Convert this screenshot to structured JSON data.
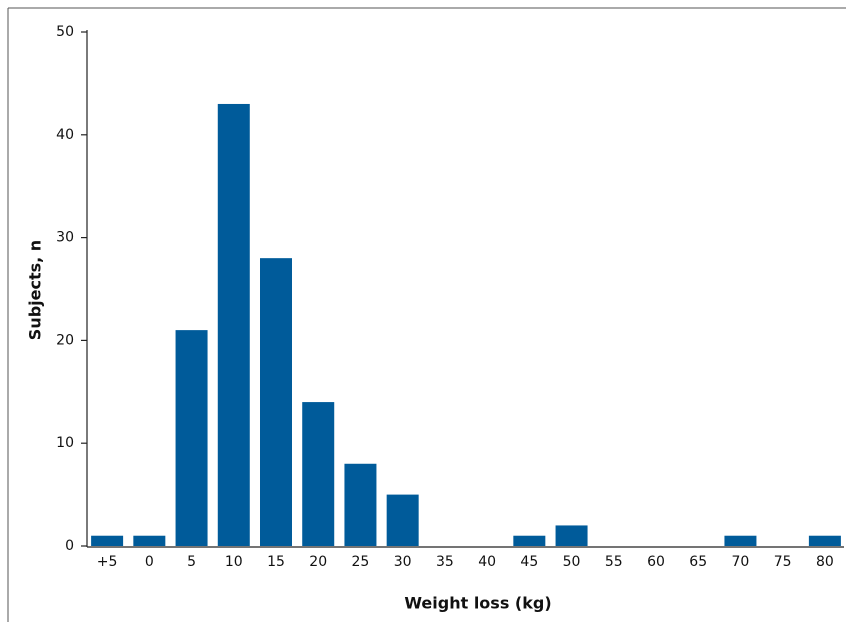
{
  "chart_data": {
    "type": "bar",
    "x_label": "Weight loss (kg)",
    "y_label": "Subjects, n",
    "categories": [
      "+5",
      "0",
      "5",
      "10",
      "15",
      "20",
      "25",
      "30",
      "35",
      "40",
      "45",
      "50",
      "55",
      "60",
      "65",
      "70",
      "75",
      "80"
    ],
    "values": [
      1,
      1,
      21,
      43,
      28,
      14,
      8,
      5,
      0,
      0,
      1,
      2,
      0,
      0,
      0,
      1,
      0,
      1
    ],
    "color": "#005b9a",
    "ylim": [
      0,
      50
    ],
    "yticks": [
      0,
      10,
      20,
      30,
      40,
      50
    ],
    "grid": false
  }
}
